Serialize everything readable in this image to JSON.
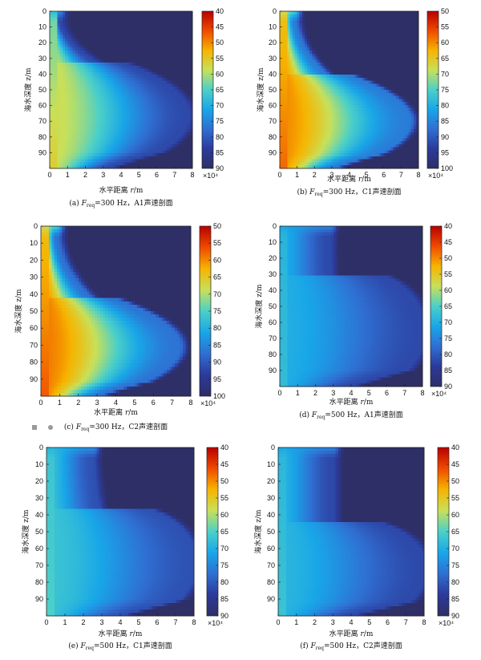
{
  "colors": {
    "background": "#ffffff",
    "colormap": "jet_r",
    "colormap_stops": [
      "#b80000",
      "#f04a00",
      "#f6b400",
      "#c8e05a",
      "#4cd0c8",
      "#18a6e8",
      "#2f6fd2",
      "#2c3a9a",
      "#2e2f66"
    ]
  },
  "common": {
    "ylabel": "海水深度 z/m",
    "xlabel_pre": "水平距离 ",
    "xlabel_var": "r",
    "xlabel_post": "/m",
    "colorbar_exponent": "×10⁴",
    "caption_var": "F",
    "caption_sub": "req"
  },
  "chart_data": [
    {
      "type": "heatmap",
      "caption_label": "(a)",
      "caption_freq": "=300 Hz，",
      "caption_profile": "A1声速剖面",
      "x_ticks": [
        "0",
        "1",
        "2",
        "3",
        "4",
        "5",
        "6",
        "7",
        "8"
      ],
      "y_ticks": [
        "0",
        "10",
        "20",
        "30",
        "40",
        "50",
        "60",
        "70",
        "80",
        "90"
      ],
      "cb_ticks": [
        "40",
        "45",
        "50",
        "55",
        "60",
        "65",
        "70",
        "75",
        "80",
        "85",
        "90"
      ],
      "xlim": [
        0,
        8
      ],
      "ylim": [
        0,
        100
      ],
      "clim": [
        40,
        90
      ],
      "field": {
        "top_range": 0.5,
        "floor_depth": 33,
        "edge_range": 7.8,
        "edge_exp": 1.5,
        "peak_value": 58,
        "far_value": 82,
        "surface_value": 70
      }
    },
    {
      "type": "heatmap",
      "caption_label": "(b)",
      "caption_freq": "=300 Hz，",
      "caption_profile": "C1声速剖面",
      "x_ticks": [
        "0",
        "1",
        "2",
        "3",
        "4",
        "5",
        "6",
        "7",
        "8"
      ],
      "y_ticks": [
        "0",
        "10",
        "20",
        "30",
        "40",
        "50",
        "60",
        "70",
        "80",
        "90"
      ],
      "cb_ticks": [
        "50",
        "55",
        "60",
        "65",
        "70",
        "75",
        "80",
        "85",
        "90",
        "95",
        "100"
      ],
      "xlim": [
        0,
        8
      ],
      "ylim": [
        0,
        100
      ],
      "clim": [
        50,
        100
      ],
      "field": {
        "top_range": 0.8,
        "floor_depth": 40,
        "edge_range": 7.5,
        "edge_exp": 1.3,
        "peak_value": 60,
        "far_value": 86,
        "surface_value": 70
      }
    },
    {
      "type": "heatmap",
      "caption_label": "(c)",
      "caption_freq": "=300 Hz，",
      "caption_profile": "C2声速剖面",
      "x_ticks": [
        "0",
        "1",
        "2",
        "3",
        "4",
        "5",
        "6",
        "7",
        "8"
      ],
      "y_ticks": [
        "0",
        "10",
        "20",
        "30",
        "40",
        "50",
        "60",
        "70",
        "80",
        "90"
      ],
      "cb_ticks": [
        "50",
        "55",
        "60",
        "65",
        "70",
        "75",
        "80",
        "85",
        "90",
        "95",
        "100"
      ],
      "xlim": [
        0,
        8
      ],
      "ylim": [
        0,
        100
      ],
      "clim": [
        50,
        100
      ],
      "field": {
        "top_range": 0.8,
        "floor_depth": 42,
        "edge_range": 7.4,
        "edge_exp": 1.3,
        "peak_value": 59,
        "far_value": 87,
        "surface_value": 70
      }
    },
    {
      "type": "heatmap",
      "caption_label": "(d)",
      "caption_freq": "=500 Hz，",
      "caption_profile": "A1声速剖面",
      "x_ticks": [
        "0",
        "1",
        "2",
        "3",
        "4",
        "5",
        "6",
        "7",
        "8"
      ],
      "y_ticks": [
        "0",
        "10",
        "20",
        "30",
        "40",
        "50",
        "60",
        "70",
        "80",
        "90"
      ],
      "cb_ticks": [
        "40",
        "45",
        "50",
        "55",
        "60",
        "65",
        "70",
        "75",
        "80",
        "85",
        "90"
      ],
      "xlim": [
        0,
        8
      ],
      "ylim": [
        0,
        100
      ],
      "clim": [
        40,
        90
      ],
      "field": {
        "top_range": 2.8,
        "floor_depth": 30,
        "edge_range": 8.1,
        "edge_exp": 3.0,
        "peak_value": 70,
        "far_value": 82,
        "surface_value": 72
      }
    },
    {
      "type": "heatmap",
      "caption_label": "(e)",
      "caption_freq": "=500 Hz，",
      "caption_profile": "C1声速剖面",
      "x_ticks": [
        "0",
        "1",
        "2",
        "3",
        "4",
        "5",
        "6",
        "7",
        "8"
      ],
      "y_ticks": [
        "0",
        "10",
        "20",
        "30",
        "40",
        "50",
        "60",
        "70",
        "80",
        "90"
      ],
      "cb_ticks": [
        "40",
        "45",
        "50",
        "55",
        "60",
        "65",
        "70",
        "75",
        "80",
        "85",
        "90"
      ],
      "xlim": [
        0,
        8
      ],
      "ylim": [
        0,
        100
      ],
      "clim": [
        40,
        90
      ],
      "field": {
        "top_range": 2.5,
        "floor_depth": 37,
        "edge_range": 8.1,
        "edge_exp": 3.0,
        "peak_value": 67,
        "far_value": 81,
        "surface_value": 70
      }
    },
    {
      "type": "heatmap",
      "caption_label": "(f)",
      "caption_freq": "=500 Hz，",
      "caption_profile": "C2声速剖面",
      "x_ticks": [
        "0",
        "1",
        "2",
        "3",
        "4",
        "5",
        "6",
        "7",
        "8"
      ],
      "y_ticks": [
        "0",
        "10",
        "20",
        "30",
        "40",
        "50",
        "60",
        "70",
        "80",
        "90"
      ],
      "cb_ticks": [
        "40",
        "45",
        "50",
        "55",
        "60",
        "65",
        "70",
        "75",
        "80",
        "85",
        "90"
      ],
      "xlim": [
        0,
        8
      ],
      "ylim": [
        0,
        100
      ],
      "clim": [
        40,
        90
      ],
      "field": {
        "top_range": 3.0,
        "floor_depth": 45,
        "edge_range": 8.1,
        "edge_exp": 3.0,
        "peak_value": 69,
        "far_value": 82,
        "surface_value": 72
      }
    }
  ]
}
